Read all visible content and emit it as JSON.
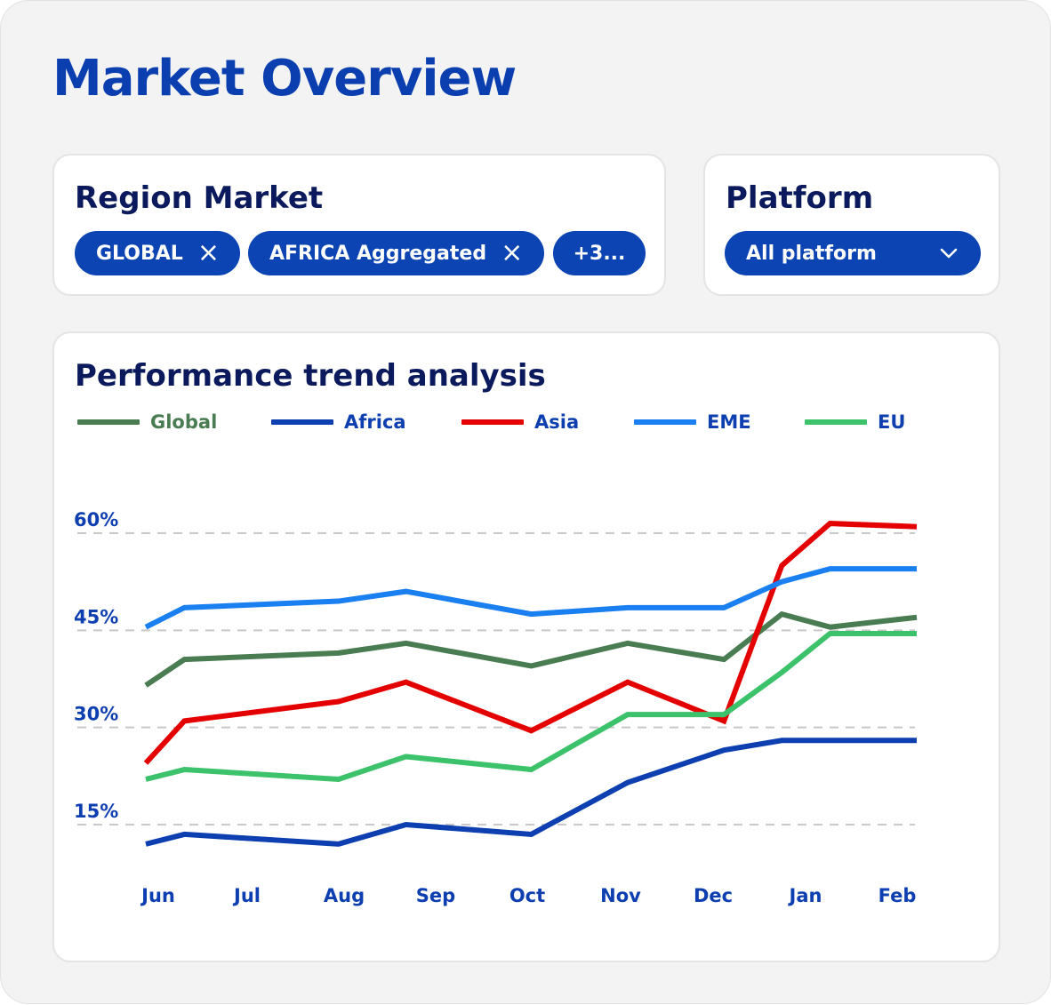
{
  "page": {
    "title": "Market Overview"
  },
  "region": {
    "title": "Region Market",
    "chips": [
      "GLOBAL",
      "AFRICA Aggregated"
    ],
    "more_label": "+3..."
  },
  "platform": {
    "title": "Platform",
    "selected": "All platform"
  },
  "chart": {
    "title": "Performance trend analysis"
  },
  "chart_data": {
    "type": "line",
    "title": "Performance trend analysis",
    "x": [
      "Jun",
      "",
      "Jul",
      "Aug",
      "",
      "Sep",
      "Oct",
      "Nov",
      "Dec",
      "",
      "Jan",
      "Feb"
    ],
    "x_tick_labels": [
      "Jun",
      "Jul",
      "Aug",
      "Sep",
      "Oct",
      "Nov",
      "Dec",
      "Jan",
      "Feb"
    ],
    "y_tick_labels": [
      "15%",
      "30%",
      "45%",
      "60%"
    ],
    "y_ticks": [
      15,
      30,
      45,
      60
    ],
    "ylim": [
      0,
      75
    ],
    "grid": "horizontal dashed",
    "legend_position": "top",
    "series": [
      {
        "name": "Global",
        "color": "#4a7c52",
        "points": [
          [
            0,
            36.5
          ],
          [
            0.4,
            40.5
          ],
          [
            2,
            41.5
          ],
          [
            2.7,
            43
          ],
          [
            4,
            39.5
          ],
          [
            5,
            43
          ],
          [
            6,
            40.5
          ],
          [
            6.6,
            47.5
          ],
          [
            7.1,
            45.5
          ],
          [
            8,
            47
          ]
        ]
      },
      {
        "name": "Africa",
        "color": "#0d3fb0",
        "points": [
          [
            0,
            12
          ],
          [
            0.4,
            13.5
          ],
          [
            2,
            12
          ],
          [
            2.7,
            15
          ],
          [
            4,
            13.5
          ],
          [
            5,
            21.5
          ],
          [
            6,
            26.5
          ],
          [
            6.6,
            28
          ],
          [
            7.1,
            28
          ],
          [
            8,
            28
          ]
        ]
      },
      {
        "name": "Asia",
        "color": "#e50000",
        "points": [
          [
            0,
            24.5
          ],
          [
            0.4,
            31
          ],
          [
            2,
            34
          ],
          [
            2.7,
            37
          ],
          [
            4,
            29.5
          ],
          [
            5,
            37
          ],
          [
            6,
            31
          ],
          [
            6.6,
            55
          ],
          [
            7.1,
            61.5
          ],
          [
            8,
            61
          ]
        ]
      },
      {
        "name": "EME",
        "color": "#1a7ff0",
        "points": [
          [
            0,
            45.5
          ],
          [
            0.4,
            48.5
          ],
          [
            2,
            49.5
          ],
          [
            2.7,
            51
          ],
          [
            4,
            47.5
          ],
          [
            5,
            48.5
          ],
          [
            6,
            48.5
          ],
          [
            6.6,
            52.5
          ],
          [
            7.1,
            54.5
          ],
          [
            8,
            54.5
          ]
        ]
      },
      {
        "name": "EU",
        "color": "#3cc26a",
        "points": [
          [
            0,
            22
          ],
          [
            0.4,
            23.5
          ],
          [
            2,
            22
          ],
          [
            2.7,
            25.5
          ],
          [
            4,
            23.5
          ],
          [
            5,
            32
          ],
          [
            6,
            32
          ],
          [
            6.6,
            38.5
          ],
          [
            7.1,
            44.5
          ],
          [
            8,
            44.5
          ]
        ]
      }
    ]
  }
}
